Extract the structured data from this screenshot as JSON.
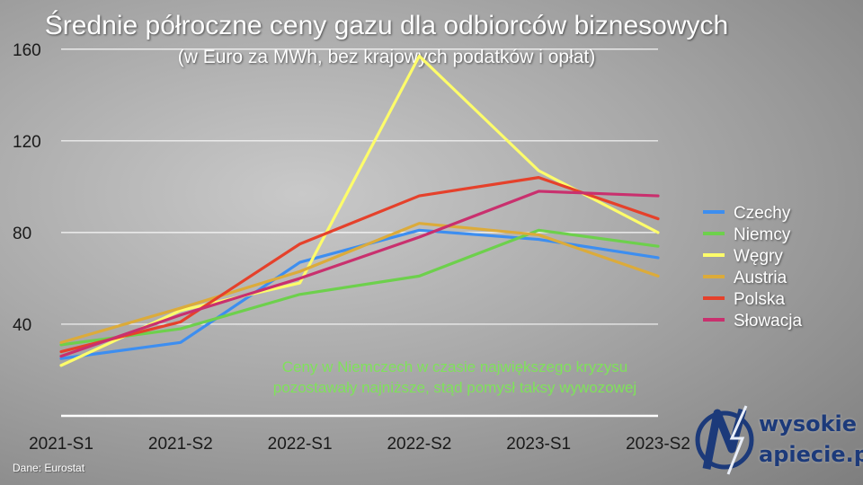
{
  "colors": {
    "Czechy": "#3d8ef0",
    "Niemcy": "#6dd04c",
    "Węgry": "#fdfc6a",
    "Austria": "#dcab3a",
    "Polska": "#e5412b",
    "Słowacja": "#c9306e",
    "annotation": "#7fe25a",
    "grid": "#ffffff"
  },
  "chart_data": {
    "type": "line",
    "title": "Średnie półroczne ceny gazu dla odbiorców biznesowych",
    "subtitle": "(w Euro za MWh, bez krajowych podatków i opłat)",
    "categories": [
      "2021-S1",
      "2021-S2",
      "2022-S1",
      "2022-S2",
      "2023-S1",
      "2023-S2"
    ],
    "yticks": [
      40,
      80,
      120,
      160
    ],
    "ylim": [
      0,
      165
    ],
    "grid": true,
    "legend_position": "right",
    "series": [
      {
        "name": "Czechy",
        "values": [
          25,
          32,
          67,
          81,
          77,
          69
        ]
      },
      {
        "name": "Niemcy",
        "values": [
          31,
          38,
          53,
          61,
          81,
          74
        ]
      },
      {
        "name": "Węgry",
        "values": [
          22,
          46,
          58,
          157,
          107,
          80
        ]
      },
      {
        "name": "Austria",
        "values": [
          32,
          47,
          63,
          84,
          79,
          61
        ]
      },
      {
        "name": "Polska",
        "values": [
          28,
          41,
          75,
          96,
          104,
          86
        ]
      },
      {
        "name": "Słowacja",
        "values": [
          26,
          44,
          60,
          78,
          98,
          96
        ]
      }
    ],
    "annotation": {
      "line1": "Ceny w Niemczech w czasie największego kryzysu",
      "line2": "pozostawały najniższe, stąd pomysł taksy wywozowej"
    }
  },
  "source": "Dane: Eurostat",
  "logo": {
    "line1": "wysokie",
    "line2": "apiecie.pl"
  }
}
